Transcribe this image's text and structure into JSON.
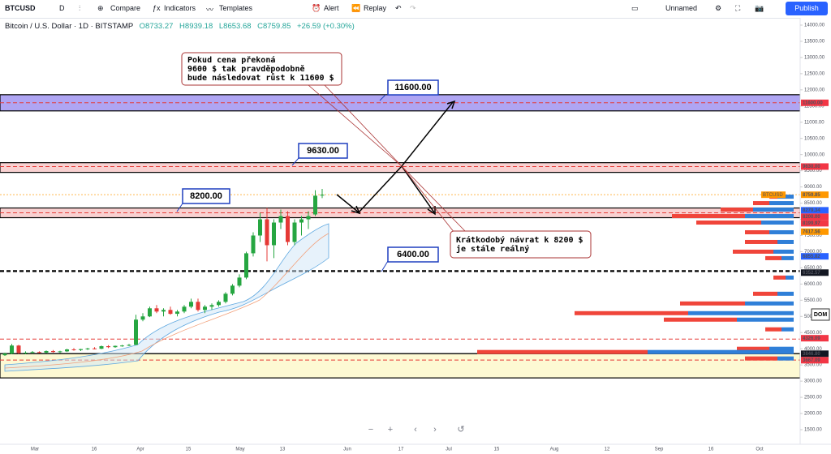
{
  "toolbar": {
    "symbol": "BTCUSD",
    "interval": "D",
    "compare": "Compare",
    "indicators": "Indicators",
    "templates": "Templates",
    "alert": "Alert",
    "replay": "Replay",
    "layout_name": "Unnamed",
    "publish": "Publish"
  },
  "legend": {
    "title": "Bitcoin / U.S. Dollar · 1D · BITSTAMP",
    "open": "O8733.27",
    "high": "H8939.18",
    "low": "L8653.68",
    "close": "C8759.85",
    "change": "+26.59 (+0.30%)"
  },
  "chart_data": {
    "type": "candlestick",
    "ylim": [
      1500,
      14000
    ],
    "yticks": [
      {
        "value": 1500,
        "label": "1500.00"
      },
      {
        "value": 2000,
        "label": "2000.00"
      },
      {
        "value": 2500,
        "label": "2500.00"
      },
      {
        "value": 3000,
        "label": "3000.00"
      },
      {
        "value": 3500,
        "label": "3500.00"
      },
      {
        "value": 4000,
        "label": "4000.00"
      },
      {
        "value": 4500,
        "label": "4500.00"
      },
      {
        "value": 5000,
        "label": "5000.00"
      },
      {
        "value": 5500,
        "label": "5500.00"
      },
      {
        "value": 6000,
        "label": "6000.00"
      },
      {
        "value": 6500,
        "label": "6500.00"
      },
      {
        "value": 7000,
        "label": "7000.00"
      },
      {
        "value": 7500,
        "label": "7500.00"
      },
      {
        "value": 8000,
        "label": "8000.00"
      },
      {
        "value": 8500,
        "label": "8500.00"
      },
      {
        "value": 9000,
        "label": "9000.00"
      },
      {
        "value": 9500,
        "label": "9500.00"
      },
      {
        "value": 10000,
        "label": "10000.00"
      },
      {
        "value": 10500,
        "label": "10500.00"
      },
      {
        "value": 11000,
        "label": "11000.00"
      },
      {
        "value": 11500,
        "label": "11500.00"
      },
      {
        "value": 12000,
        "label": "12000.00"
      },
      {
        "value": 12500,
        "label": "12500.00"
      },
      {
        "value": 13000,
        "label": "13000.00"
      },
      {
        "value": 13500,
        "label": "13500.00"
      },
      {
        "value": 14000,
        "label": "14000.00"
      }
    ],
    "x_labels": [
      "Mar",
      "16",
      "Apr",
      "15",
      "May",
      "13",
      "Jun",
      "17",
      "Jul",
      "15",
      "Aug",
      "12",
      "Sep",
      "16",
      "Oct"
    ],
    "candles": {
      "open": [
        3800,
        3850,
        4100,
        3870,
        3880,
        3900,
        3880,
        3930,
        3900,
        3920,
        3980,
        3960,
        3990,
        4010,
        4000,
        4080,
        4050,
        4090,
        4100,
        4120,
        4900,
        5000,
        5250,
        5150,
        5200,
        5080,
        5150,
        5300,
        5450,
        5200,
        5300,
        5350,
        5450,
        5700,
        5950,
        6200,
        6950,
        7500,
        8000,
        7200,
        7900,
        8100,
        7300,
        7900,
        8000,
        8150,
        8733.27
      ],
      "high": [
        3880,
        4150,
        4120,
        3920,
        3930,
        3920,
        3950,
        3960,
        3940,
        4000,
        4020,
        4000,
        4030,
        4050,
        4100,
        4110,
        4100,
        4120,
        4150,
        5050,
        5100,
        5300,
        5350,
        5250,
        5300,
        5200,
        5350,
        5550,
        5550,
        5350,
        5400,
        5500,
        5750,
        6000,
        6300,
        7000,
        7600,
        8200,
        8350,
        8000,
        8300,
        8250,
        8000,
        8100,
        8250,
        8900,
        8939.18
      ],
      "low": [
        3780,
        3830,
        3840,
        3840,
        3850,
        3860,
        3860,
        3880,
        3870,
        3900,
        3940,
        3930,
        3960,
        3980,
        3990,
        4020,
        4030,
        4060,
        4080,
        4110,
        4850,
        4980,
        5100,
        5000,
        5050,
        5000,
        5100,
        5250,
        5150,
        5100,
        5200,
        5300,
        5400,
        5650,
        5900,
        6150,
        6850,
        7300,
        6700,
        6800,
        7700,
        7200,
        7200,
        7500,
        7700,
        8100,
        8653.68
      ],
      "close": [
        3850,
        4100,
        3870,
        3880,
        3900,
        3880,
        3930,
        3900,
        3920,
        3980,
        3960,
        3990,
        4010,
        4000,
        4080,
        4050,
        4090,
        4100,
        4120,
        4900,
        5000,
        5250,
        5150,
        5200,
        5080,
        5150,
        5300,
        5450,
        5200,
        5300,
        5350,
        5450,
        5700,
        5950,
        6200,
        6950,
        7500,
        8000,
        7200,
        7900,
        8100,
        7300,
        7900,
        8000,
        8100,
        8730,
        8759.85
      ]
    },
    "zones": [
      {
        "low": 11350,
        "high": 11850,
        "fill": "#9b8ff0"
      },
      {
        "low": 9450,
        "high": 9750,
        "fill": "#f7c6c6"
      },
      {
        "low": 8050,
        "high": 8350,
        "fill": "#f7c6c6"
      },
      {
        "low": 3100,
        "high": 3850,
        "fill": "#fdf7c8"
      }
    ],
    "lines": [
      {
        "value": 11600,
        "color": "#e53935",
        "style": "dashed"
      },
      {
        "value": 9630,
        "color": "#e53935",
        "style": "dashed"
      },
      {
        "value": 8759.85,
        "color": "#ffb74d",
        "style": "dotted"
      },
      {
        "value": 8200,
        "color": "#e53935",
        "style": "dashed"
      },
      {
        "value": 6400,
        "color": "#000000",
        "style": "dashed-bold"
      },
      {
        "value": 4300,
        "color": "#e53935",
        "style": "dashed"
      },
      {
        "value": 3850,
        "color": "#000000",
        "style": "solid"
      },
      {
        "value": 3650,
        "color": "#e53935",
        "style": "dashed"
      }
    ],
    "price_labels": [
      {
        "value": 11600,
        "label": "11600.00",
        "color": "#f23645"
      },
      {
        "value": 9630,
        "label": "9630.00",
        "color": "#f23645"
      },
      {
        "value": 8759.85,
        "label": "8759.85",
        "color": "#ff9800"
      },
      {
        "value": 8279.34,
        "label": "8279.34",
        "color": "#2962ff"
      },
      {
        "value": 8200,
        "label": "8200.00",
        "color": "#f23645"
      },
      {
        "value": 8199.97,
        "label": "8199.97",
        "color": "#f23645"
      },
      {
        "value": 7617.56,
        "label": "7617.56",
        "color": "#ff9800"
      },
      {
        "value": 6855.82,
        "label": "6855.82",
        "color": "#2962ff"
      },
      {
        "value": 6352.57,
        "label": "6352.57",
        "color": "#131722"
      },
      {
        "value": 4326.09,
        "label": "4326.09",
        "color": "#f23645"
      },
      {
        "value": 3846.8,
        "label": "3846.80",
        "color": "#131722"
      },
      {
        "value": 3667.09,
        "label": "3667.09",
        "color": "#f23645"
      }
    ],
    "symbol_tag": "BTCUSD",
    "dom": "DOM",
    "annotations": [
      "11600.00",
      "9630.00",
      "8200.00",
      "6400.00"
    ],
    "callouts": [
      [
        "Pokud cena  překoná",
        "9600 $ tak pravděpodobně",
        "bude následovat růst k 11600 $"
      ],
      [
        "Krátkodobý návrat k 8200 $",
        "je stále reálný"
      ]
    ],
    "volume_profile": {
      "prices": [
        8700,
        8500,
        8300,
        8100,
        7900,
        7600,
        7300,
        7000,
        6800,
        6200,
        5700,
        5400,
        5100,
        4900,
        4600,
        4000,
        3900,
        3700
      ],
      "buy": [
        20,
        30,
        50,
        60,
        40,
        30,
        20,
        25,
        15,
        10,
        20,
        60,
        130,
        70,
        15,
        30,
        180,
        20
      ],
      "sell": [
        10,
        20,
        40,
        90,
        80,
        30,
        40,
        50,
        20,
        15,
        30,
        80,
        140,
        90,
        20,
        40,
        210,
        40
      ]
    }
  }
}
